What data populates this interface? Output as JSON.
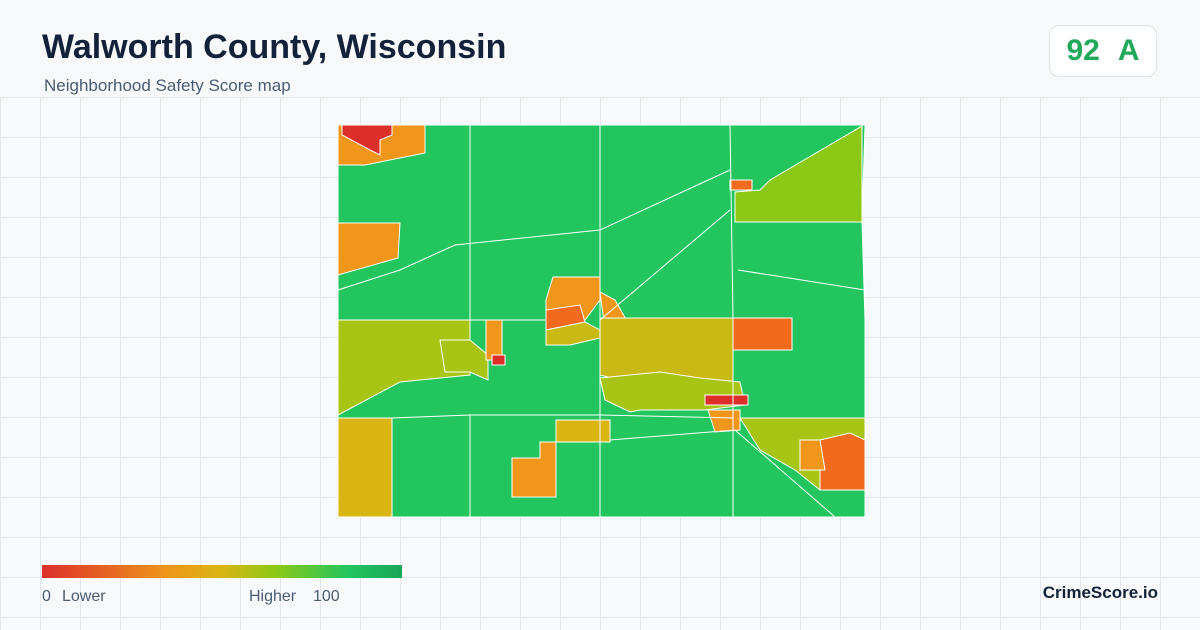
{
  "header": {
    "title": "Walworth County, Wisconsin",
    "subtitle": "Neighborhood Safety Score map"
  },
  "score": {
    "value": 92,
    "grade": "A"
  },
  "legend": {
    "min": 0,
    "min_label": "Lower",
    "max_label": "Higher",
    "max": 100
  },
  "footer": {
    "brand": "CrimeScore.io"
  }
}
